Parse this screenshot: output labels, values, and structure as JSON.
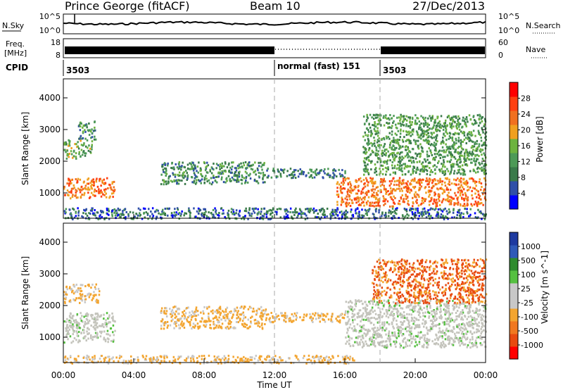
{
  "header": {
    "station": "Prince George (fitACF)",
    "beam": "Beam 10",
    "date": "27/Dec/2013"
  },
  "noise_panel": {
    "left_label": "N.Sky",
    "left_ticks": [
      "10^5",
      "10^0"
    ],
    "right_label": "N.Search",
    "right_ticks": [
      "10^5",
      "10^0"
    ]
  },
  "freq_panel": {
    "left_label_top": "Freq.",
    "left_label_bottom": "[MHz]",
    "left_ticks": [
      "18",
      "8"
    ],
    "right_label": "Nave",
    "right_ticks": [
      "60",
      "0"
    ]
  },
  "cpid": {
    "label": "CPID",
    "segments": [
      {
        "text": "3503",
        "start_hour": 0
      },
      {
        "text": "normal (fast) 151",
        "start_hour": 12
      },
      {
        "text": "3503",
        "start_hour": 18
      }
    ]
  },
  "xaxis": {
    "title": "Time UT",
    "ticks": [
      "00:00",
      "04:00",
      "08:00",
      "12:00",
      "16:00",
      "20:00",
      "00:00"
    ]
  },
  "colors": {
    "power": [
      "#0000ff",
      "#2f4fa8",
      "#3a7a4a",
      "#4d9a57",
      "#6db33f",
      "#f0a020",
      "#f07020",
      "#ff4010",
      "#ff0000"
    ],
    "velocity_bar": [
      "#1e3aa0",
      "#2f5ab8",
      "#2e8b2e",
      "#55c040",
      "#c8c8c8",
      "#c8c8c8",
      "#f3a530",
      "#f07820",
      "#e84a10",
      "#ff0000"
    ],
    "ground_scatter": "#c4c4bc",
    "near_range_orange": "#e8a830"
  },
  "chart_data": [
    {
      "type": "heatmap",
      "panel": "power",
      "ylabel": "Slant Range [km]",
      "ylim": [
        200,
        4600
      ],
      "yticks": [
        1000,
        2000,
        3000,
        4000
      ],
      "xlim_hours": [
        0,
        24
      ],
      "colorbar": {
        "label": "Power [dB]",
        "ticks": [
          4,
          8,
          12,
          16,
          20,
          24,
          28
        ]
      },
      "regions": [
        {
          "t0": 0.0,
          "t1": 2.9,
          "r0": 850,
          "r1": 1500,
          "level": 24
        },
        {
          "t0": 0.0,
          "t1": 1.6,
          "r0": 2100,
          "r1": 2700,
          "level": 14
        },
        {
          "t0": 0.8,
          "t1": 1.8,
          "r0": 2700,
          "r1": 3300,
          "level": 10
        },
        {
          "t0": 5.5,
          "t1": 11.5,
          "r0": 1300,
          "r1": 2000,
          "level": 10
        },
        {
          "t0": 11.5,
          "t1": 16.0,
          "r0": 1500,
          "r1": 1800,
          "level": 8
        },
        {
          "t0": 15.5,
          "t1": 24.0,
          "r0": 600,
          "r1": 1500,
          "level": 24
        },
        {
          "t0": 17.0,
          "t1": 24.0,
          "r0": 1600,
          "r1": 3500,
          "level": 12
        },
        {
          "t0": 0.0,
          "t1": 24.0,
          "r0": 200,
          "r1": 550,
          "level": 6
        }
      ]
    },
    {
      "type": "heatmap",
      "panel": "velocity",
      "ylabel": "Slant Range [km]",
      "ylim": [
        200,
        4600
      ],
      "yticks": [
        1000,
        2000,
        3000,
        4000
      ],
      "xlim_hours": [
        0,
        24
      ],
      "colorbar": {
        "label": "Velocity [m s^-1]",
        "ticks": [
          1000,
          500,
          100,
          25,
          -25,
          -100,
          -500,
          -1000
        ]
      },
      "regions": [
        {
          "t0": 0.0,
          "t1": 2.9,
          "r0": 850,
          "r1": 1800,
          "velocity": 0,
          "ground_scatter": true
        },
        {
          "t0": 0.0,
          "t1": 2.0,
          "r0": 2100,
          "r1": 2700,
          "velocity": -100
        },
        {
          "t0": 5.5,
          "t1": 11.5,
          "r0": 1300,
          "r1": 2000,
          "velocity": -100
        },
        {
          "t0": 11.5,
          "t1": 16.0,
          "r0": 1500,
          "r1": 1800,
          "velocity": -100
        },
        {
          "t0": 16.0,
          "t1": 24.0,
          "r0": 700,
          "r1": 2200,
          "velocity": 0,
          "ground_scatter": true
        },
        {
          "t0": 17.5,
          "t1": 24.0,
          "r0": 2100,
          "r1": 3500,
          "velocity": -300
        },
        {
          "t0": 0.0,
          "t1": 16.5,
          "r0": 200,
          "r1": 450,
          "velocity": -100
        }
      ]
    }
  ]
}
